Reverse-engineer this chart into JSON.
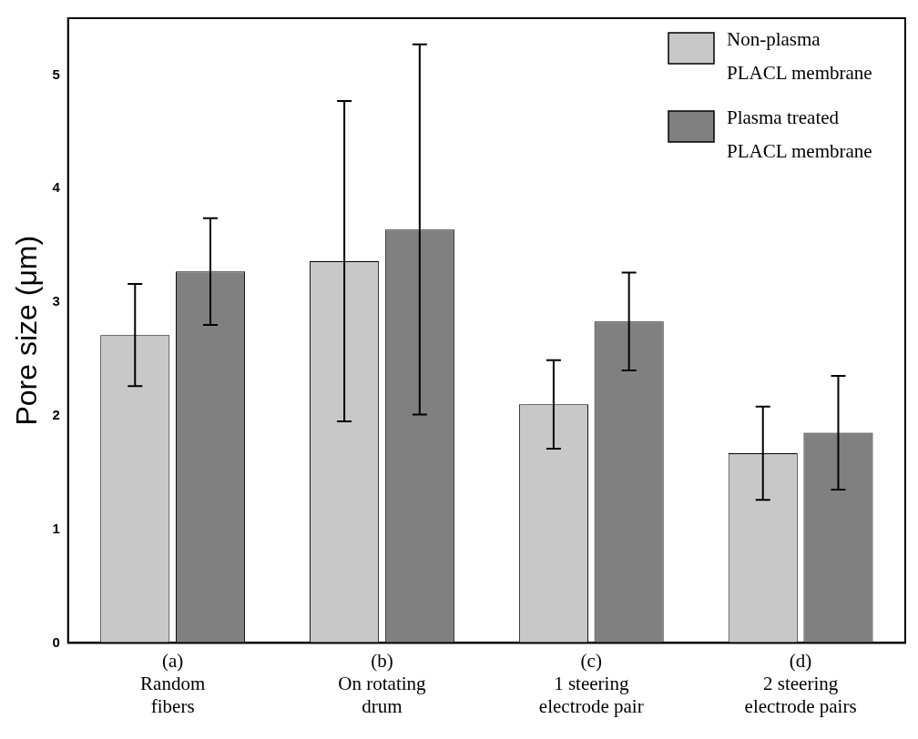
{
  "chart_data": {
    "type": "bar",
    "ylabel": "Pore size (μm)",
    "categories": [
      "(a)\nRandom\nfibers",
      "(b)\nOn rotating\ndrum",
      "(c)\n1 steering\nelectrode pair",
      "(d)\n2 steering\nelectrode pairs"
    ],
    "series": [
      {
        "name": "Non-plasma\nPLACL membrane",
        "color": "#c8c8c8",
        "values": [
          2.71,
          3.36,
          2.1,
          1.67
        ],
        "errors": [
          0.45,
          1.41,
          0.39,
          0.41
        ]
      },
      {
        "name": "Plasma treated\nPLACL membrane",
        "color": "#808080",
        "values": [
          3.27,
          3.64,
          2.83,
          1.85
        ],
        "errors": [
          0.47,
          1.63,
          0.43,
          0.5
        ]
      }
    ],
    "ylim": [
      0,
      5.5
    ],
    "yticks": [
      0,
      1,
      2,
      3,
      4,
      5
    ],
    "grid": false,
    "legend": "top right"
  }
}
